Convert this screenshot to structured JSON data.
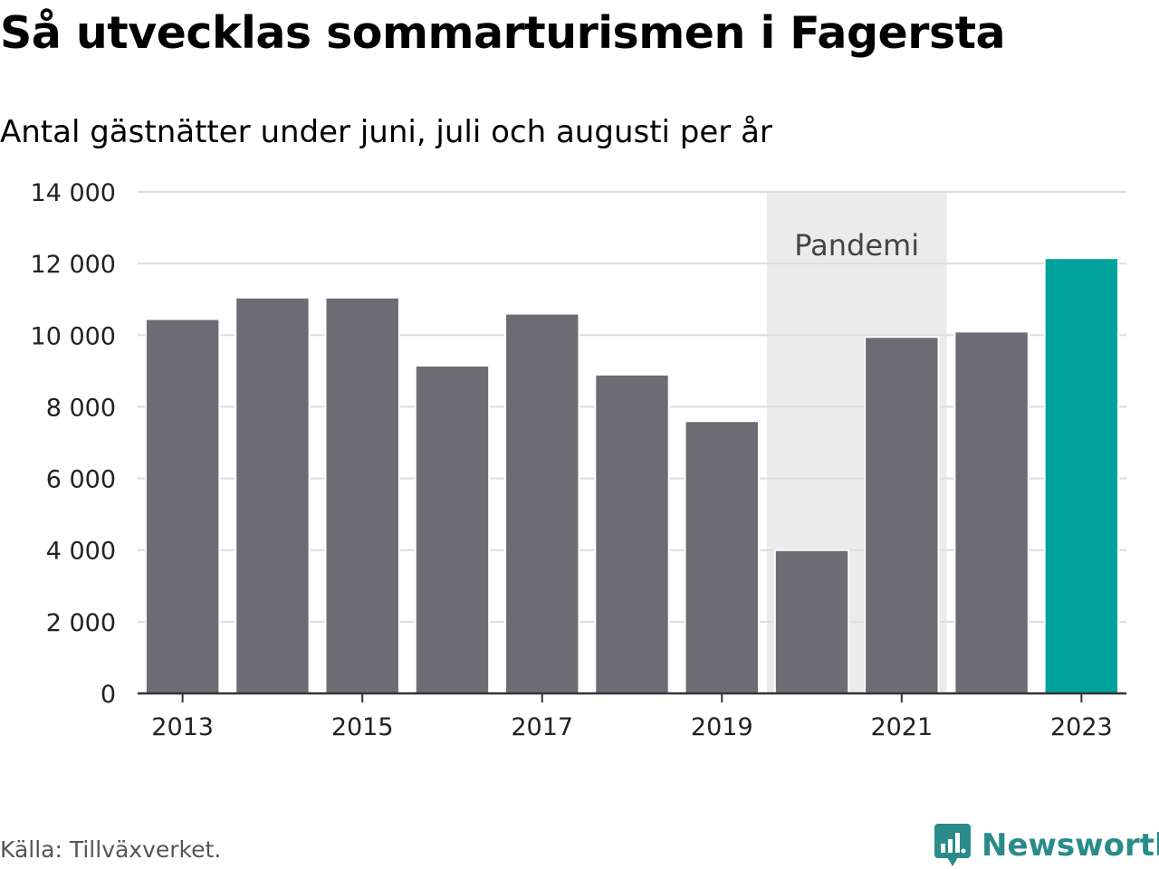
{
  "title": "Så utvecklas sommarturismen i Fagersta",
  "subtitle": "Antal gästnätter under juni, juli och augusti per år",
  "source": "Källa: Tillväxverket.",
  "brand": {
    "name": "Newsworthy",
    "color": "#2a8b8b",
    "icon": "bar-chart-speech-icon"
  },
  "chart_data": {
    "type": "bar",
    "categories": [
      "2013",
      "2014",
      "2015",
      "2016",
      "2017",
      "2018",
      "2019",
      "2020",
      "2021",
      "2022",
      "2023"
    ],
    "values": [
      10450,
      11050,
      11050,
      9150,
      10600,
      8900,
      7600,
      4000,
      9950,
      10100,
      12150
    ],
    "bar_colors": [
      "#6d6c75",
      "#6d6c75",
      "#6d6c75",
      "#6d6c75",
      "#6d6c75",
      "#6d6c75",
      "#6d6c75",
      "#6d6c75",
      "#6d6c75",
      "#6d6c75",
      "#00a39a"
    ],
    "xtick_labels": [
      "2013",
      "2015",
      "2017",
      "2019",
      "2021",
      "2023"
    ],
    "yticks": [
      0,
      2000,
      4000,
      6000,
      8000,
      10000,
      12000,
      14000
    ],
    "ytick_labels": [
      "0",
      "2 000",
      "4 000",
      "6 000",
      "8 000",
      "10 000",
      "12 000",
      "14 000"
    ],
    "ylim": [
      0,
      14000
    ],
    "grid": true,
    "legend": "none",
    "annotation": {
      "label": "Pandemi",
      "from": "2020",
      "to": "2021",
      "color": "#ebebeb"
    }
  }
}
